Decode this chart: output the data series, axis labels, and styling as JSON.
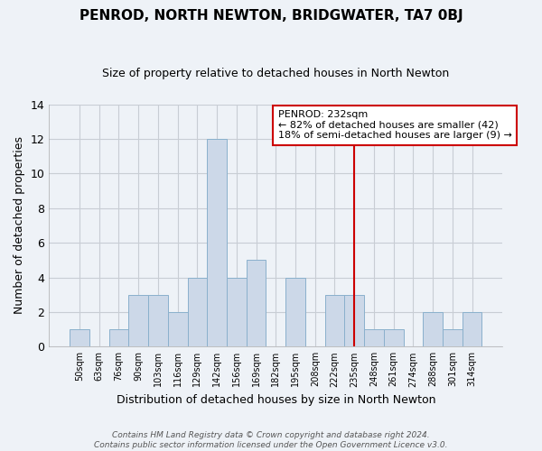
{
  "title": "PENROD, NORTH NEWTON, BRIDGWATER, TA7 0BJ",
  "subtitle": "Size of property relative to detached houses in North Newton",
  "xlabel": "Distribution of detached houses by size in North Newton",
  "ylabel": "Number of detached properties",
  "bin_labels": [
    "50sqm",
    "63sqm",
    "76sqm",
    "90sqm",
    "103sqm",
    "116sqm",
    "129sqm",
    "142sqm",
    "156sqm",
    "169sqm",
    "182sqm",
    "195sqm",
    "208sqm",
    "222sqm",
    "235sqm",
    "248sqm",
    "261sqm",
    "274sqm",
    "288sqm",
    "301sqm",
    "314sqm"
  ],
  "bar_values": [
    1,
    0,
    1,
    3,
    3,
    2,
    4,
    12,
    4,
    5,
    0,
    4,
    0,
    3,
    3,
    1,
    1,
    0,
    2,
    1,
    2
  ],
  "bar_color": "#ccd8e8",
  "bar_edge_color": "#8ab0cc",
  "ylim": [
    0,
    14
  ],
  "yticks": [
    0,
    2,
    4,
    6,
    8,
    10,
    12,
    14
  ],
  "vline_x_index": 14,
  "annotation_title": "PENROD: 232sqm",
  "annotation_line1": "← 82% of detached houses are smaller (42)",
  "annotation_line2": "18% of semi-detached houses are larger (9) →",
  "footer_line1": "Contains HM Land Registry data © Crown copyright and database right 2024.",
  "footer_line2": "Contains public sector information licensed under the Open Government Licence v3.0.",
  "background_color": "#eef2f7",
  "grid_color": "#c8cdd4",
  "vline_color": "#cc0000",
  "annotation_border_color": "#cc0000",
  "title_fontsize": 11,
  "subtitle_fontsize": 9
}
